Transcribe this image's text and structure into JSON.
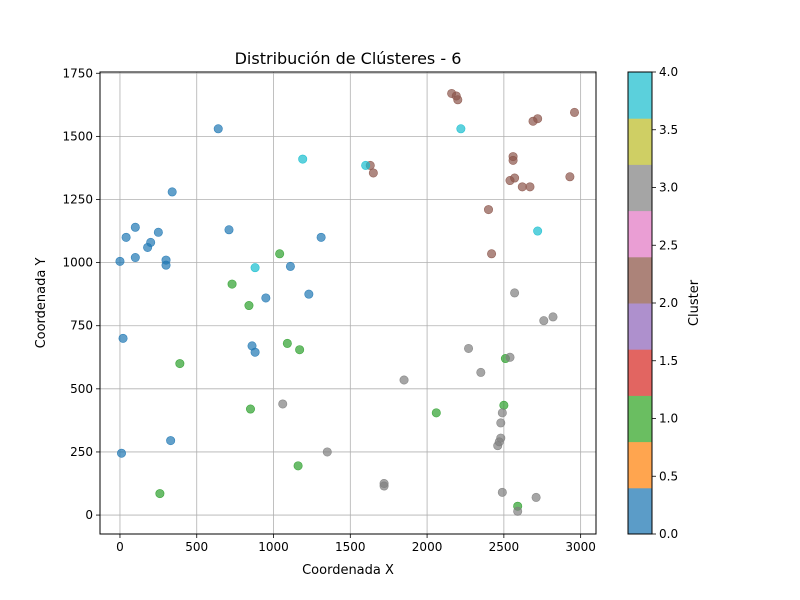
{
  "chart_data": {
    "type": "scatter",
    "title": "Distribución de Clústeres - 6",
    "xlabel": "Coordenada X",
    "ylabel": "Coordenada Y",
    "xlim": [
      -130,
      3100
    ],
    "ylim": [
      -75,
      1755
    ],
    "xticks": [
      0,
      500,
      1000,
      1500,
      2000,
      2500,
      3000
    ],
    "yticks": [
      0,
      250,
      500,
      750,
      1000,
      1250,
      1500,
      1750
    ],
    "grid": true,
    "colorbar": {
      "label": "Cluster",
      "range": [
        0,
        4
      ],
      "ticks": [
        "0.0",
        "0.5",
        "1.0",
        "1.5",
        "2.0",
        "2.5",
        "3.0",
        "3.5",
        "4.0"
      ],
      "colors": [
        "#5b9cc8",
        "#ffa54f",
        "#6abe61",
        "#e26561",
        "#ae90cd",
        "#ac8379",
        "#ea9ed4",
        "#a5a5a5",
        "#cfcf64",
        "#5bd0dc"
      ]
    },
    "cluster_colors": {
      "0": "#1f77b4",
      "1": "#2ca02c",
      "2": "#8c564b",
      "3": "#7f7f7f",
      "4": "#17becf"
    },
    "series": [
      {
        "cluster": 0,
        "points": [
          [
            640,
            1530
          ],
          [
            340,
            1280
          ],
          [
            710,
            1130
          ],
          [
            100,
            1140
          ],
          [
            250,
            1120
          ],
          [
            40,
            1100
          ],
          [
            200,
            1080
          ],
          [
            180,
            1060
          ],
          [
            1310,
            1100
          ],
          [
            100,
            1020
          ],
          [
            300,
            1010
          ],
          [
            300,
            990
          ],
          [
            0,
            1005
          ],
          [
            1110,
            985
          ],
          [
            1230,
            875
          ],
          [
            950,
            860
          ],
          [
            20,
            700
          ],
          [
            860,
            670
          ],
          [
            880,
            645
          ],
          [
            330,
            295
          ],
          [
            10,
            245
          ]
        ]
      },
      {
        "cluster": 1,
        "points": [
          [
            1040,
            1035
          ],
          [
            730,
            915
          ],
          [
            840,
            830
          ],
          [
            1090,
            680
          ],
          [
            1170,
            655
          ],
          [
            390,
            600
          ],
          [
            2510,
            620
          ],
          [
            850,
            420
          ],
          [
            2500,
            435
          ],
          [
            2060,
            405
          ],
          [
            1160,
            195
          ],
          [
            260,
            85
          ],
          [
            2590,
            35
          ]
        ]
      },
      {
        "cluster": 2,
        "points": [
          [
            2160,
            1670
          ],
          [
            2190,
            1660
          ],
          [
            2200,
            1645
          ],
          [
            2960,
            1595
          ],
          [
            2720,
            1570
          ],
          [
            2690,
            1560
          ],
          [
            1630,
            1385
          ],
          [
            1650,
            1355
          ],
          [
            2560,
            1420
          ],
          [
            2560,
            1405
          ],
          [
            2540,
            1325
          ],
          [
            2570,
            1335
          ],
          [
            2620,
            1300
          ],
          [
            2670,
            1300
          ],
          [
            2930,
            1340
          ],
          [
            2400,
            1210
          ],
          [
            2420,
            1035
          ]
        ]
      },
      {
        "cluster": 3,
        "points": [
          [
            2570,
            880
          ],
          [
            2820,
            785
          ],
          [
            2760,
            770
          ],
          [
            2270,
            660
          ],
          [
            2540,
            625
          ],
          [
            2350,
            565
          ],
          [
            1850,
            535
          ],
          [
            1060,
            440
          ],
          [
            2490,
            405
          ],
          [
            2480,
            365
          ],
          [
            2480,
            305
          ],
          [
            2470,
            290
          ],
          [
            2460,
            275
          ],
          [
            1350,
            250
          ],
          [
            1720,
            125
          ],
          [
            1720,
            115
          ],
          [
            2490,
            90
          ],
          [
            2710,
            70
          ],
          [
            2590,
            15
          ]
        ]
      },
      {
        "cluster": 4,
        "points": [
          [
            2220,
            1530
          ],
          [
            1190,
            1410
          ],
          [
            1600,
            1385
          ],
          [
            880,
            980
          ],
          [
            2720,
            1125
          ]
        ]
      }
    ]
  }
}
